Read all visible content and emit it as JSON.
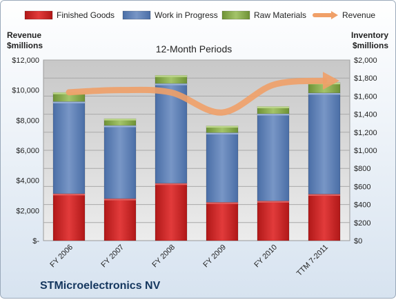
{
  "chart_data": {
    "type": "bar",
    "title": "12-Month Periods",
    "company": "STMicroelectronics NV",
    "left_axis_label": [
      "Revenue",
      "$millions"
    ],
    "right_axis_label": [
      "Inventory",
      "$millions"
    ],
    "categories": [
      "FY 2006",
      "FY 2007",
      "FY 2008",
      "FY 2009",
      "FY 2010",
      "TTM 7-2011"
    ],
    "stack_axis": "right",
    "series": [
      {
        "name": "Finished Goods",
        "kind": "stacked-bar",
        "axis": "right",
        "color": "#cc2222",
        "values": [
          520,
          465,
          635,
          425,
          440,
          515
        ]
      },
      {
        "name": "Work in Progress",
        "kind": "stacked-bar",
        "axis": "right",
        "color": "#5b7fb5",
        "values": [
          1020,
          810,
          1105,
          770,
          965,
          1120
        ]
      },
      {
        "name": "Raw Materials",
        "kind": "stacked-bar",
        "axis": "right",
        "color": "#86a84a",
        "values": [
          100,
          75,
          90,
          75,
          80,
          115
        ]
      },
      {
        "name": "Revenue",
        "kind": "line",
        "axis": "left",
        "color": "#f0a068",
        "values": [
          9854,
          10001,
          9842,
          8510,
          10346,
          10620
        ]
      }
    ],
    "left_axis": {
      "min": 0,
      "max": 12000,
      "ticks": [
        "$-",
        "$2,000",
        "$4,000",
        "$6,000",
        "$8,000",
        "$10,000",
        "$12,000"
      ]
    },
    "right_axis": {
      "min": 0,
      "max": 2000,
      "ticks": [
        "$0",
        "$200",
        "$400",
        "$600",
        "$800",
        "$1,000",
        "$1,200",
        "$1,400",
        "$1,600",
        "$1,800",
        "$2,000"
      ]
    },
    "legend_position": "top",
    "grid": true
  }
}
